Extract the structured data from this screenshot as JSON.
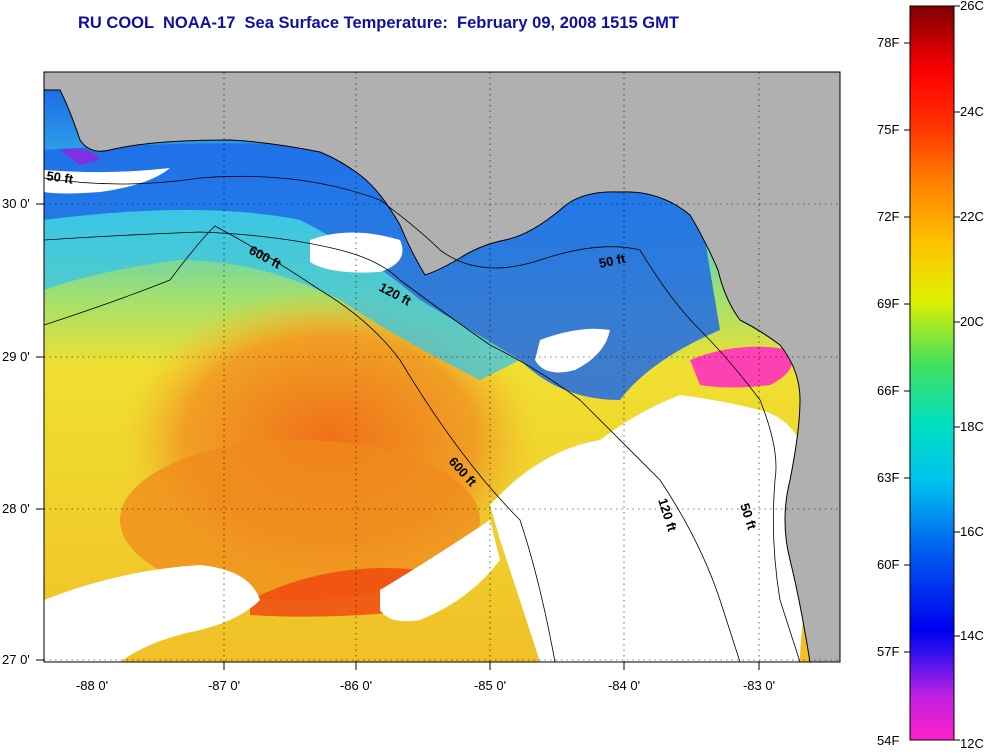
{
  "title": "RU COOL  NOAA-17  Sea Surface Temperature:  February 09, 2008 1515 GMT",
  "map": {
    "lon_ticks": [
      "-88 0'",
      "-87 0'",
      "-86 0'",
      "-85 0'",
      "-84 0'",
      "-83 0'"
    ],
    "lat_ticks": [
      "30 0'",
      "29 0'",
      "28 0'",
      "27 0'"
    ],
    "contour_labels": [
      "50 ft",
      "600 ft",
      "120 ft",
      "50 ft",
      "600 ft",
      "120 ft",
      "50 ft"
    ],
    "colors": {
      "land": "#b0b0b0",
      "cloud": "#ffffff",
      "water_cold": "#1060e0",
      "water_cool": "#30c8e8",
      "water_mild": "#f0e030",
      "water_warm": "#f0a020",
      "water_hot": "#f06010"
    }
  },
  "colorbar": {
    "fahrenheit_labels": [
      "78F",
      "75F",
      "72F",
      "69F",
      "66F",
      "63F",
      "60F",
      "57F",
      "54F"
    ],
    "celsius_labels": [
      "26C",
      "24C",
      "22C",
      "20C",
      "18C",
      "16C",
      "14C",
      "12C"
    ],
    "gradient_stops": [
      "#ff20c8",
      "#8020f0",
      "#0000f0",
      "#0060f0",
      "#00c0f0",
      "#00e0c0",
      "#40e060",
      "#e0f000",
      "#ffc000",
      "#ff8000",
      "#ff3000",
      "#ff0000",
      "#a00000",
      "#800000"
    ]
  }
}
